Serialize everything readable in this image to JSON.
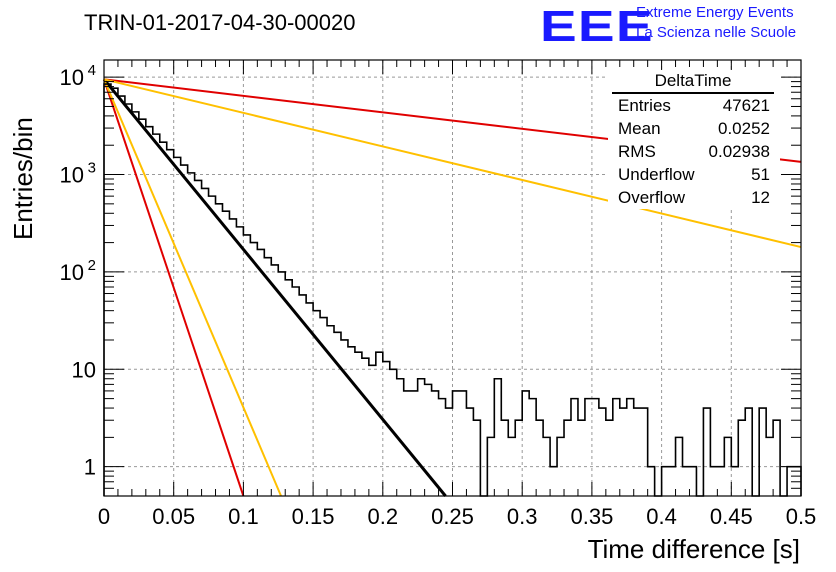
{
  "header": {
    "title": "TRIN-01-2017-04-30-00020",
    "logo_text": "EEE",
    "logo_line1": "Extreme Energy Events",
    "logo_line2": "La Scienza nelle Scuole",
    "logo_color": "#1a1aff"
  },
  "stats": {
    "title": "DeltaTime",
    "rows": [
      {
        "label": "Entries",
        "value": "47621"
      },
      {
        "label": "Mean",
        "value": "0.0252"
      },
      {
        "label": "RMS",
        "value": "0.02938"
      },
      {
        "label": "Underflow",
        "value": "51"
      },
      {
        "label": "Overflow",
        "value": "12"
      }
    ]
  },
  "chart_data": {
    "type": "line",
    "xlabel": "Time difference [s]",
    "ylabel": "Entries/bin",
    "xlim": [
      0,
      0.5
    ],
    "ylim": [
      0.5,
      15000
    ],
    "yscale": "log",
    "grid": true,
    "x_ticks": [
      "0",
      "0.05",
      "0.1",
      "0.15",
      "0.2",
      "0.25",
      "0.3",
      "0.35",
      "0.4",
      "0.45",
      "0.5"
    ],
    "y_ticks": [
      {
        "value": 1,
        "label": "1"
      },
      {
        "value": 10,
        "label": "10"
      },
      {
        "value": 100,
        "label": "10",
        "exp": "2"
      },
      {
        "value": 1000,
        "label": "10",
        "exp": "3"
      },
      {
        "value": 10000,
        "label": "10",
        "exp": "4"
      }
    ],
    "histogram": {
      "bin_width": 0.005,
      "values": [
        8500,
        7700,
        6400,
        5300,
        4400,
        3700,
        3100,
        2600,
        2150,
        1800,
        1500,
        1250,
        1040,
        870,
        720,
        600,
        500,
        420,
        350,
        290,
        240,
        200,
        170,
        140,
        118,
        100,
        83,
        70,
        58,
        48,
        40,
        34,
        28,
        24,
        20,
        17,
        15,
        13,
        11,
        15,
        12,
        10,
        8,
        6,
        6,
        8,
        7,
        6,
        5,
        4,
        6,
        6,
        4,
        3,
        0,
        2,
        8,
        3,
        2,
        3,
        6,
        5,
        3,
        2,
        1,
        2,
        3,
        5,
        3,
        5,
        5,
        4,
        3,
        5,
        4,
        5,
        4,
        4,
        1,
        0,
        1,
        1,
        2,
        1,
        1,
        0,
        4,
        1,
        1,
        2,
        1,
        3,
        4,
        0,
        4,
        2,
        3,
        0,
        1,
        1
      ],
      "color": "#000000"
    },
    "series": [
      {
        "x": [
          0,
          0.245
        ],
        "y": [
          9500,
          0.5
        ],
        "color": "#000000",
        "width": 3
      },
      {
        "x": [
          0,
          0.5
        ],
        "y": [
          9500,
          1350
        ],
        "color": "#e00000",
        "width": 2
      },
      {
        "x": [
          0,
          0.5
        ],
        "y": [
          9500,
          180
        ],
        "color": "#ffc000",
        "width": 2
      },
      {
        "x": [
          0,
          0.1
        ],
        "y": [
          9500,
          0.5
        ],
        "color": "#e00000",
        "width": 2
      },
      {
        "x": [
          0,
          0.127
        ],
        "y": [
          9500,
          0.5
        ],
        "color": "#ffc000",
        "width": 2
      }
    ]
  }
}
